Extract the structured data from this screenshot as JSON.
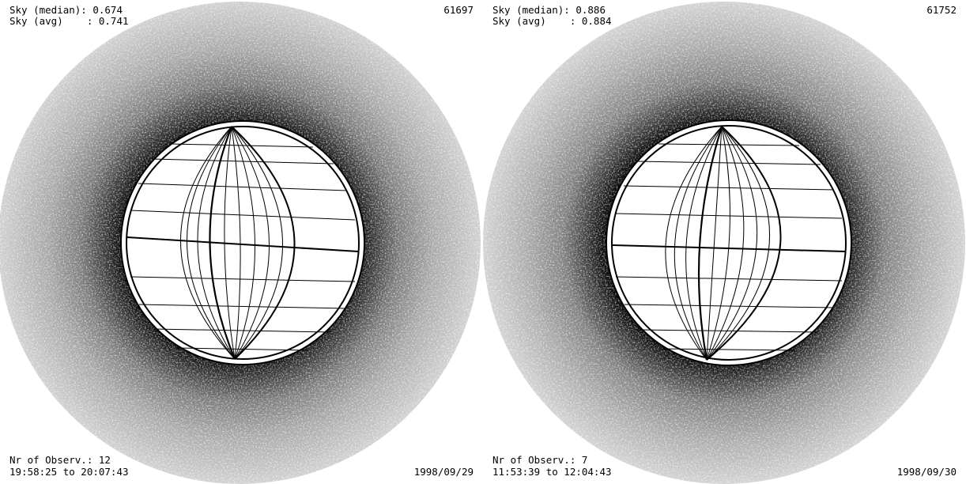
{
  "panels": [
    {
      "sky_median": "Sky (median): 0.674",
      "sky_avg": "Sky (avg)    : 0.741",
      "frame_id": "61697",
      "nr_observ": "Nr of Observ.: 12",
      "time_range": "19:58:25 to 20:07:43",
      "date": "1998/09/29"
    },
    {
      "sky_median": "Sky (median): 0.886",
      "sky_avg": "Sky (avg)    : 0.884",
      "frame_id": "61752",
      "nr_observ": "Nr of Observ.: 7",
      "time_range": "11:53:39 to 12:04:43",
      "date": "1998/09/30"
    }
  ],
  "colors": {
    "background": "#ffffff",
    "corona_light": "#c8c8c8",
    "corona_dark": "#141414",
    "grid": "#000000"
  }
}
